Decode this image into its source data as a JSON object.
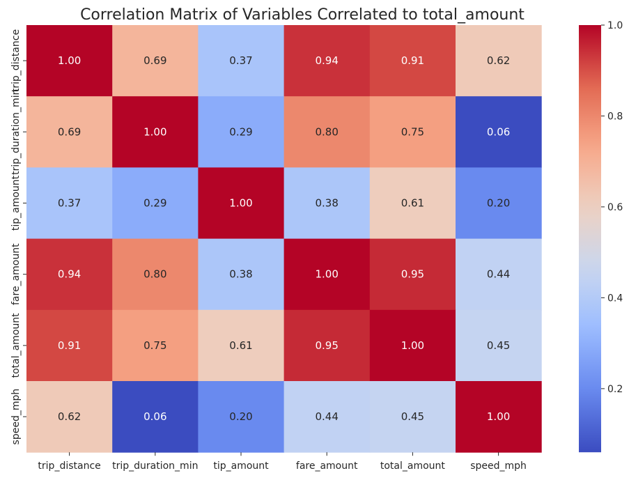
{
  "chart_data": {
    "type": "heatmap",
    "title": "Correlation Matrix of Variables Correlated to total_amount",
    "xlabel": "",
    "ylabel": "",
    "x_categories": [
      "trip_distance",
      "trip_duration_min",
      "tip_amount",
      "fare_amount",
      "total_amount",
      "speed_mph"
    ],
    "y_categories": [
      "trip_distance",
      "trip_duration_min",
      "tip_amount",
      "fare_amount",
      "total_amount",
      "speed_mph"
    ],
    "values": [
      [
        1.0,
        0.69,
        0.37,
        0.94,
        0.91,
        0.62
      ],
      [
        0.69,
        1.0,
        0.29,
        0.8,
        0.75,
        0.06
      ],
      [
        0.37,
        0.29,
        1.0,
        0.38,
        0.61,
        0.2
      ],
      [
        0.94,
        0.8,
        0.38,
        1.0,
        0.95,
        0.44
      ],
      [
        0.91,
        0.75,
        0.61,
        0.95,
        1.0,
        0.45
      ],
      [
        0.62,
        0.06,
        0.2,
        0.44,
        0.45,
        1.0
      ]
    ],
    "value_format": "0.00",
    "colormap": "coolwarm",
    "colormap_stops": [
      "#3b4cc0",
      "#6788ee",
      "#9abbff",
      "#c9d7f0",
      "#edd1c2",
      "#f7a889",
      "#e26952",
      "#b40426"
    ],
    "vmin": 0.06,
    "vmax": 1.0,
    "colorbar_ticks": [
      "0.2",
      "0.4",
      "0.6",
      "0.8",
      "1.0"
    ],
    "grid": false,
    "legend": "colorbar-right"
  }
}
